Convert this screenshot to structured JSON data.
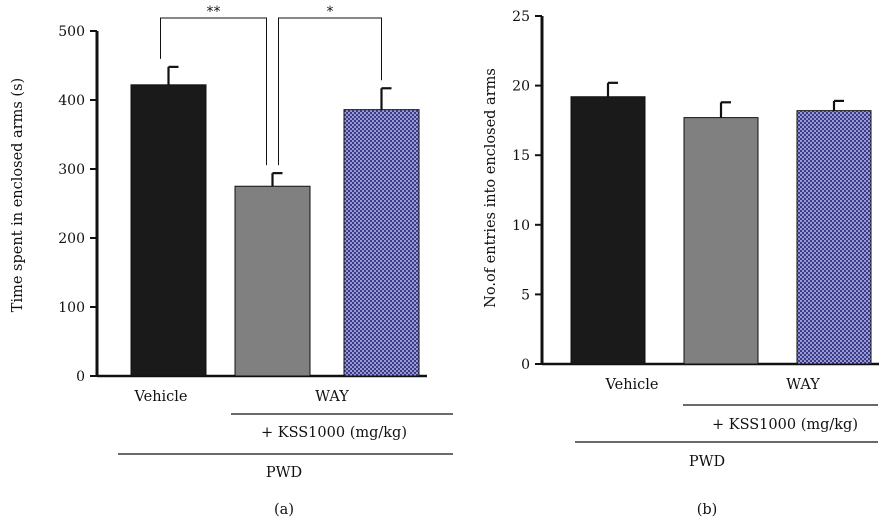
{
  "chart_data": [
    {
      "type": "bar",
      "panel_label": "(a)",
      "ylabel": "Time spent in enclosed arms (s)",
      "ylim": [
        0,
        500
      ],
      "yticks": [
        0,
        100,
        200,
        300,
        400,
        500
      ],
      "categories": [
        "Vehicle",
        "WAY",
        "WAY"
      ],
      "category_labels": [
        "Vehicle",
        "WAY"
      ],
      "values": [
        422,
        275,
        386
      ],
      "errors": [
        26,
        19,
        31
      ],
      "bar_colors": [
        "#1a1a1a",
        "#808080",
        "#3c3c8c"
      ],
      "bar_patterns": [
        "solid",
        "solid",
        "checker"
      ],
      "group_labels": [
        "+ KSS1000 (mg/kg)",
        "PWD"
      ],
      "significance": [
        {
          "between": [
            0,
            1
          ],
          "label": "**"
        },
        {
          "between": [
            1,
            2
          ],
          "label": "*"
        }
      ]
    },
    {
      "type": "bar",
      "panel_label": "(b)",
      "ylabel": "No.of entries into enclosed arms",
      "ylim": [
        0,
        25
      ],
      "yticks": [
        0,
        5,
        10,
        15,
        20,
        25
      ],
      "categories": [
        "Vehicle",
        "WAY",
        "WAY"
      ],
      "category_labels": [
        "Vehicle",
        "WAY"
      ],
      "values": [
        19.2,
        17.7,
        18.2
      ],
      "errors": [
        1.0,
        1.1,
        0.7
      ],
      "bar_colors": [
        "#1a1a1a",
        "#808080",
        "#3c3c8c"
      ],
      "bar_patterns": [
        "solid",
        "solid",
        "checker"
      ],
      "group_labels": [
        "+ KSS1000 (mg/kg)",
        "PWD"
      ]
    }
  ]
}
